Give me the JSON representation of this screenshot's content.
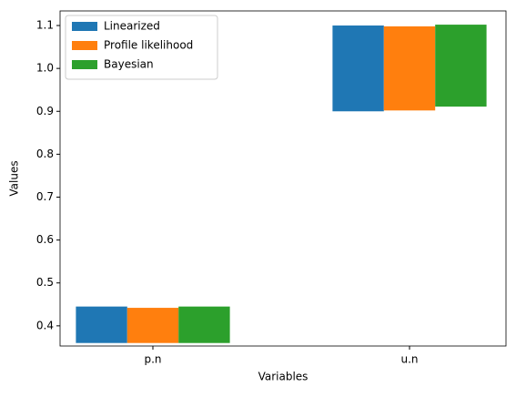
{
  "chart_data": {
    "type": "floating_bar",
    "xlabel": "Variables",
    "ylabel": "Values",
    "categories": [
      "p.n",
      "u.n"
    ],
    "series": [
      {
        "name": "Linearized",
        "color": "#1f77b4",
        "low": [
          0.36,
          0.9
        ],
        "high": [
          0.445,
          1.1
        ]
      },
      {
        "name": "Profile likelihood",
        "color": "#ff7f0e",
        "low": [
          0.36,
          0.902
        ],
        "high": [
          0.442,
          1.098
        ]
      },
      {
        "name": "Bayesian",
        "color": "#2ca02c",
        "low": [
          0.36,
          0.911
        ],
        "high": [
          0.445,
          1.102
        ]
      }
    ],
    "ylim": [
      0.353,
      1.134
    ],
    "yticks": [
      {
        "value": 0.4,
        "label": "0.4"
      },
      {
        "value": 0.5,
        "label": "0.5"
      },
      {
        "value": 0.6,
        "label": "0.6"
      },
      {
        "value": 0.7,
        "label": "0.7"
      },
      {
        "value": 0.8,
        "label": "0.8"
      },
      {
        "value": 0.9,
        "label": "0.9"
      },
      {
        "value": 1.0,
        "label": "1.0"
      },
      {
        "value": 1.1,
        "label": "1.1"
      }
    ],
    "legend": "upper left"
  }
}
